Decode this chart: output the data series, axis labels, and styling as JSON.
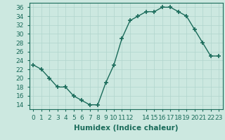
{
  "x": [
    0,
    1,
    2,
    3,
    4,
    5,
    6,
    7,
    8,
    9,
    10,
    11,
    12,
    13,
    14,
    15,
    16,
    17,
    18,
    19,
    20,
    21,
    22,
    23
  ],
  "y": [
    23,
    22,
    20,
    18,
    18,
    16,
    15,
    14,
    14,
    19,
    23,
    29,
    33,
    34,
    35,
    35,
    36,
    36,
    35,
    34,
    31,
    28,
    25,
    25
  ],
  "line_color": "#1a6b5a",
  "marker": "+",
  "bg_color": "#cce8e0",
  "grid_color": "#b0d5cc",
  "xlabel": "Humidex (Indice chaleur)",
  "xlim": [
    -0.5,
    23.5
  ],
  "ylim": [
    13,
    37
  ],
  "yticks": [
    14,
    16,
    18,
    20,
    22,
    24,
    26,
    28,
    30,
    32,
    34,
    36
  ],
  "xticks": [
    0,
    1,
    2,
    3,
    4,
    5,
    6,
    7,
    8,
    9,
    10,
    11,
    12,
    14,
    15,
    16,
    17,
    18,
    19,
    20,
    21,
    22,
    23
  ],
  "xtick_labels": [
    "0",
    "1",
    "2",
    "3",
    "4",
    "5",
    "6",
    "7",
    "8",
    "9",
    "10",
    "11",
    "12",
    "14",
    "15",
    "16",
    "17",
    "18",
    "19",
    "20",
    "21",
    "22",
    "23"
  ],
  "tick_color": "#1a6b5a",
  "label_fontsize": 7.5,
  "tick_fontsize": 6.5
}
